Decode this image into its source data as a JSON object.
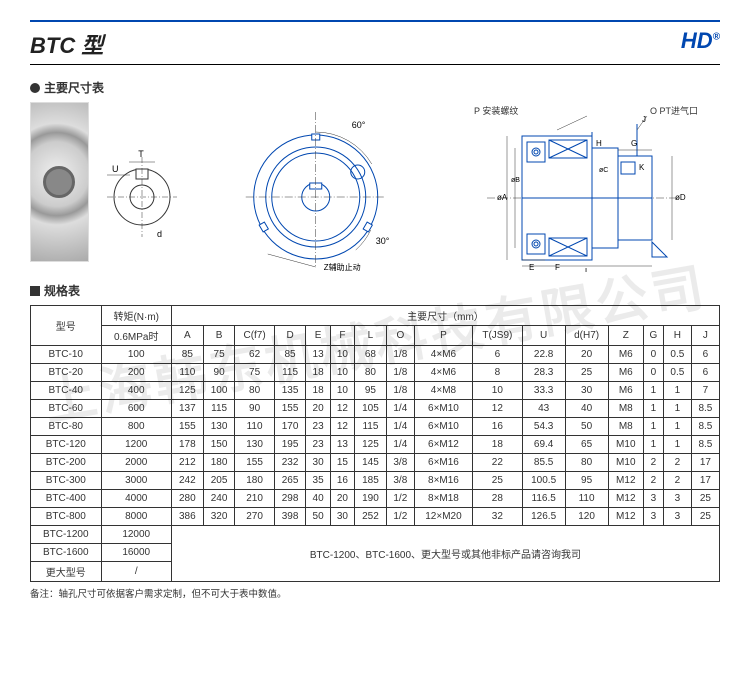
{
  "watermark": "上海韩东机械科技有限公司",
  "page_title": "BTC 型",
  "logo_text": "HD",
  "logo_mark": "®",
  "section_dim": "主要尺寸表",
  "section_spec": "规格表",
  "label_p": "P 安装螺纹",
  "label_o": "O PT进气口",
  "label_60": "60°",
  "label_30": "30°",
  "label_z": "Z辅助止动",
  "label_T": "T",
  "label_U": "U",
  "label_d": "d",
  "label_A": "øA",
  "label_B": "øB",
  "label_C": "øC",
  "label_D": "øD",
  "label_E": "E",
  "label_F": "F",
  "label_G": "G",
  "label_H": "H",
  "label_J": "J",
  "label_K": "K",
  "label_L": "L",
  "table_headers": {
    "model": "型号",
    "torque": "转矩(N·m)",
    "pressure": "0.6MPa时",
    "dims": "主要尺寸（mm）",
    "cols": [
      "A",
      "B",
      "C(f7)",
      "D",
      "E",
      "F",
      "L",
      "O",
      "P",
      "T(JS9)",
      "U",
      "d(H7)",
      "Z",
      "G",
      "H",
      "J"
    ]
  },
  "rows": [
    {
      "m": "BTC-10",
      "t": "100",
      "v": [
        "85",
        "75",
        "62",
        "85",
        "13",
        "10",
        "68",
        "1/8",
        "4×M6",
        "6",
        "22.8",
        "20",
        "M6",
        "0",
        "0.5",
        "6"
      ]
    },
    {
      "m": "BTC-20",
      "t": "200",
      "v": [
        "110",
        "90",
        "75",
        "115",
        "18",
        "10",
        "80",
        "1/8",
        "4×M6",
        "8",
        "28.3",
        "25",
        "M6",
        "0",
        "0.5",
        "6"
      ]
    },
    {
      "m": "BTC-40",
      "t": "400",
      "v": [
        "125",
        "100",
        "80",
        "135",
        "18",
        "10",
        "95",
        "1/8",
        "4×M8",
        "10",
        "33.3",
        "30",
        "M6",
        "1",
        "1",
        "7"
      ]
    },
    {
      "m": "BTC-60",
      "t": "600",
      "v": [
        "137",
        "115",
        "90",
        "155",
        "20",
        "12",
        "105",
        "1/4",
        "6×M10",
        "12",
        "43",
        "40",
        "M8",
        "1",
        "1",
        "8.5"
      ]
    },
    {
      "m": "BTC-80",
      "t": "800",
      "v": [
        "155",
        "130",
        "110",
        "170",
        "23",
        "12",
        "115",
        "1/4",
        "6×M10",
        "16",
        "54.3",
        "50",
        "M8",
        "1",
        "1",
        "8.5"
      ]
    },
    {
      "m": "BTC-120",
      "t": "1200",
      "v": [
        "178",
        "150",
        "130",
        "195",
        "23",
        "13",
        "125",
        "1/4",
        "6×M12",
        "18",
        "69.4",
        "65",
        "M10",
        "1",
        "1",
        "8.5"
      ]
    },
    {
      "m": "BTC-200",
      "t": "2000",
      "v": [
        "212",
        "180",
        "155",
        "232",
        "30",
        "15",
        "145",
        "3/8",
        "6×M16",
        "22",
        "85.5",
        "80",
        "M10",
        "2",
        "2",
        "17"
      ]
    },
    {
      "m": "BTC-300",
      "t": "3000",
      "v": [
        "242",
        "205",
        "180",
        "265",
        "35",
        "16",
        "185",
        "3/8",
        "8×M16",
        "25",
        "100.5",
        "95",
        "M12",
        "2",
        "2",
        "17"
      ]
    },
    {
      "m": "BTC-400",
      "t": "4000",
      "v": [
        "280",
        "240",
        "210",
        "298",
        "40",
        "20",
        "190",
        "1/2",
        "8×M18",
        "28",
        "116.5",
        "110",
        "M12",
        "3",
        "3",
        "25"
      ]
    },
    {
      "m": "BTC-800",
      "t": "8000",
      "v": [
        "386",
        "320",
        "270",
        "398",
        "50",
        "30",
        "252",
        "1/2",
        "12×M20",
        "32",
        "126.5",
        "120",
        "M12",
        "3",
        "3",
        "25"
      ]
    }
  ],
  "extra_rows": [
    {
      "m": "BTC-1200",
      "t": "12000"
    },
    {
      "m": "BTC-1600",
      "t": "16000"
    },
    {
      "m": "更大型号",
      "t": "/"
    }
  ],
  "extra_note": "BTC-1200、BTC-1600、更大型号或其他非标产品请咨询我司",
  "footnote": "备注：轴孔尺寸可依据客户需求定制，但不可大于表中数值。",
  "colors": {
    "brand": "#0047b0",
    "line": "#333333"
  }
}
